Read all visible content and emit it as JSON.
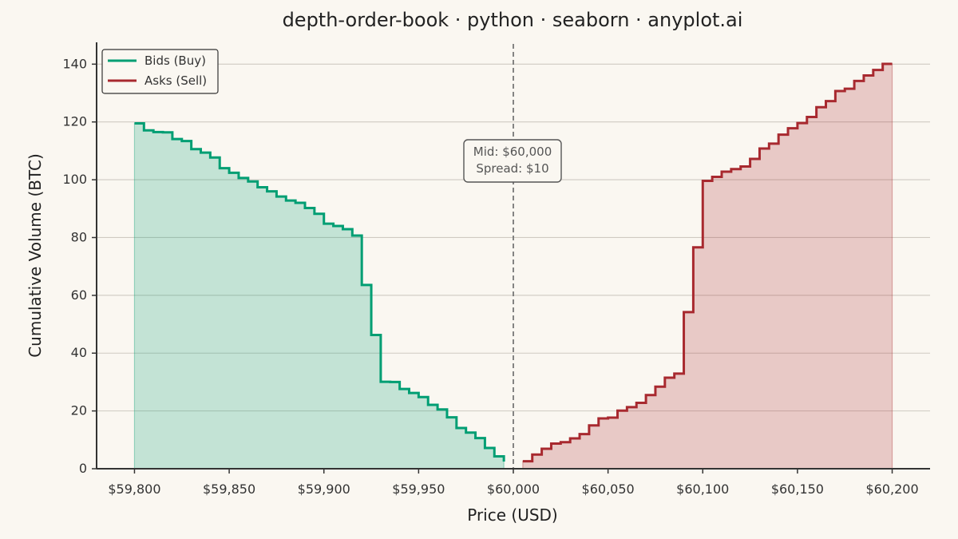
{
  "chart_data": {
    "type": "area",
    "title": "depth-order-book · python · seaborn · anyplot.ai",
    "xlabel": "Price (USD)",
    "ylabel": "Cumulative Volume (BTC)",
    "xlim": [
      59780,
      60220
    ],
    "ylim": [
      0,
      147
    ],
    "x_ticks": [
      59800,
      59850,
      59900,
      59950,
      60000,
      60050,
      60100,
      60150,
      60200
    ],
    "x_tick_labels": [
      "$59,800",
      "$59,850",
      "$59,900",
      "$59,950",
      "$60,000",
      "$60,050",
      "$60,100",
      "$60,150",
      "$60,200"
    ],
    "y_ticks": [
      0,
      20,
      40,
      60,
      80,
      100,
      120,
      140
    ],
    "y_tick_labels": [
      "0",
      "20",
      "40",
      "60",
      "80",
      "100",
      "120",
      "140"
    ],
    "grid": "horizontal",
    "legend_position": "top-left",
    "mid_price_line": 60000,
    "annotation": {
      "line1": "Mid: $60,000",
      "line2": "Spread: $10"
    },
    "series": [
      {
        "name": "Bids (Buy)",
        "color": "#009e73",
        "x": [
          59995,
          59990,
          59985,
          59980,
          59975,
          59970,
          59965,
          59960,
          59955,
          59950,
          59945,
          59940,
          59935,
          59930,
          59925,
          59920,
          59915,
          59910,
          59905,
          59900,
          59895,
          59890,
          59885,
          59880,
          59875,
          59870,
          59865,
          59860,
          59855,
          59850,
          59845,
          59840,
          59835,
          59830,
          59825,
          59820,
          59815,
          59810,
          59805,
          59800
        ],
        "values": [
          2.5,
          4.3,
          7.2,
          10.6,
          12.5,
          14.1,
          17.8,
          20.5,
          22.1,
          24.8,
          26.2,
          27.6,
          30.0,
          30.1,
          46.3,
          63.6,
          80.7,
          82.9,
          84.0,
          84.8,
          88.2,
          90.2,
          92.0,
          92.8,
          94.2,
          96.0,
          97.4,
          99.4,
          100.6,
          102.4,
          104.0,
          107.7,
          109.4,
          110.6,
          113.4,
          114.1,
          116.4,
          116.5,
          117.1,
          119.5
        ]
      },
      {
        "name": "Asks (Sell)",
        "color": "#a8292f",
        "x": [
          60005,
          60010,
          60015,
          60020,
          60025,
          60030,
          60035,
          60040,
          60045,
          60050,
          60055,
          60060,
          60065,
          60070,
          60075,
          60080,
          60085,
          60090,
          60095,
          60100,
          60105,
          60110,
          60115,
          60120,
          60125,
          60130,
          60135,
          60140,
          60145,
          60150,
          60155,
          60160,
          60165,
          60170,
          60175,
          60180,
          60185,
          60190,
          60195,
          60200
        ],
        "values": [
          2.6,
          4.9,
          6.9,
          8.7,
          9.2,
          10.5,
          12.0,
          15.0,
          17.4,
          17.7,
          20.1,
          21.3,
          22.8,
          25.5,
          28.4,
          31.5,
          32.9,
          54.2,
          76.6,
          99.6,
          101.0,
          102.8,
          103.7,
          104.6,
          107.2,
          110.8,
          112.5,
          115.6,
          117.8,
          119.6,
          121.7,
          125.1,
          127.2,
          130.7,
          131.5,
          134.2,
          136.1,
          138.0,
          140.1,
          140.1
        ]
      }
    ]
  }
}
